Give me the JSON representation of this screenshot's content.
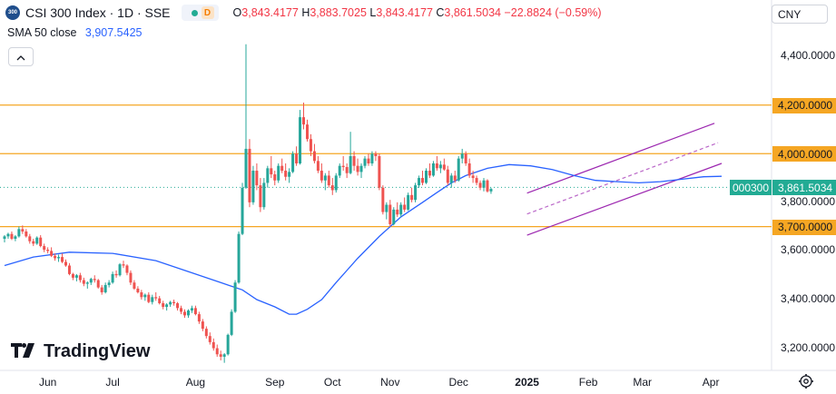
{
  "header": {
    "symbol_logo": "300",
    "title": "CSI 300 Index · 1D · SSE",
    "badge": "D",
    "ohlc": [
      {
        "k": "O",
        "v": "3,843.4177"
      },
      {
        "k": "H",
        "v": "3,883.7025"
      },
      {
        "k": "L",
        "v": "3,843.4177"
      },
      {
        "k": "C",
        "v": "3,861.5034"
      }
    ],
    "change": "−22.8824 (−0.59%)"
  },
  "indicator": {
    "label": "SMA 50 close",
    "value": "3,907.5425"
  },
  "currency": "CNY",
  "price_tag": "3,861.5034",
  "countdown": "000300",
  "brand": "TradingView",
  "colors": {
    "up": "#26a69a",
    "down": "#ef5350",
    "sma": "#2962ff",
    "hlines": "#f5a623",
    "channel": "#9c27b0",
    "tag": "#22ab94"
  },
  "chart_data": {
    "type": "candlestick",
    "y_axis": {
      "min": 3120,
      "max": 4520,
      "ticks": [
        {
          "value": 4400,
          "label": "4,400.0000"
        },
        {
          "value": 4200,
          "label": "4,200.0000",
          "marker": true
        },
        {
          "value": 4000,
          "label": "4,000.0000",
          "marker": true
        },
        {
          "value": 3800,
          "label": "3,800.0000"
        },
        {
          "value": 3700,
          "label": "3,700.0000",
          "marker": true
        },
        {
          "value": 3600,
          "label": "3,600.0000"
        },
        {
          "value": 3400,
          "label": "3,400.0000"
        },
        {
          "value": 3200,
          "label": "3,200.0000"
        }
      ]
    },
    "x_axis": {
      "labels": [
        {
          "label": "Jun",
          "i": 12
        },
        {
          "label": "Jul",
          "i": 30
        },
        {
          "label": "Aug",
          "i": 53
        },
        {
          "label": "Sep",
          "i": 75
        },
        {
          "label": "Oct",
          "i": 91
        },
        {
          "label": "Nov",
          "i": 107
        },
        {
          "label": "Dec",
          "i": 126
        },
        {
          "label": "2025",
          "i": 145,
          "bold": true
        },
        {
          "label": "Feb",
          "i": 162
        },
        {
          "label": "Mar",
          "i": 177
        },
        {
          "label": "Apr",
          "i": 196
        }
      ]
    },
    "horizontal_lines": [
      4200,
      4000,
      3700
    ],
    "channel": {
      "lower": [
        [
          145,
          3665
        ],
        [
          199,
          3960
        ]
      ],
      "upper": [
        [
          145,
          3838
        ],
        [
          197,
          4125
        ]
      ],
      "mid": [
        [
          145,
          3752
        ],
        [
          198,
          4045
        ]
      ]
    },
    "candles": [
      [
        3650,
        3665,
        3635,
        3660
      ],
      [
        3660,
        3675,
        3650,
        3670
      ],
      [
        3670,
        3680,
        3645,
        3650
      ],
      [
        3650,
        3665,
        3640,
        3660
      ],
      [
        3660,
        3700,
        3655,
        3690
      ],
      [
        3690,
        3705,
        3670,
        3680
      ],
      [
        3680,
        3690,
        3655,
        3660
      ],
      [
        3660,
        3670,
        3630,
        3640
      ],
      [
        3640,
        3650,
        3620,
        3630
      ],
      [
        3630,
        3660,
        3625,
        3655
      ],
      [
        3655,
        3665,
        3615,
        3620
      ],
      [
        3620,
        3630,
        3595,
        3605
      ],
      [
        3605,
        3615,
        3590,
        3600
      ],
      [
        3600,
        3615,
        3575,
        3580
      ],
      [
        3580,
        3590,
        3560,
        3570
      ],
      [
        3570,
        3585,
        3555,
        3575
      ],
      [
        3575,
        3590,
        3550,
        3555
      ],
      [
        3555,
        3565,
        3535,
        3540
      ],
      [
        3540,
        3550,
        3500,
        3505
      ],
      [
        3505,
        3510,
        3480,
        3490
      ],
      [
        3490,
        3505,
        3475,
        3500
      ],
      [
        3500,
        3510,
        3470,
        3480
      ],
      [
        3480,
        3490,
        3455,
        3465
      ],
      [
        3465,
        3475,
        3445,
        3470
      ],
      [
        3470,
        3490,
        3460,
        3485
      ],
      [
        3485,
        3500,
        3470,
        3480
      ],
      [
        3480,
        3485,
        3445,
        3450
      ],
      [
        3450,
        3460,
        3420,
        3430
      ],
      [
        3430,
        3470,
        3425,
        3460
      ],
      [
        3460,
        3480,
        3450,
        3470
      ],
      [
        3470,
        3515,
        3465,
        3505
      ],
      [
        3505,
        3520,
        3490,
        3500
      ],
      [
        3500,
        3550,
        3495,
        3545
      ],
      [
        3545,
        3560,
        3530,
        3540
      ],
      [
        3540,
        3545,
        3500,
        3510
      ],
      [
        3510,
        3520,
        3460,
        3470
      ],
      [
        3470,
        3480,
        3440,
        3445
      ],
      [
        3445,
        3455,
        3425,
        3430
      ],
      [
        3430,
        3440,
        3400,
        3410
      ],
      [
        3410,
        3425,
        3395,
        3420
      ],
      [
        3420,
        3430,
        3385,
        3390
      ],
      [
        3390,
        3420,
        3380,
        3410
      ],
      [
        3410,
        3430,
        3395,
        3405
      ],
      [
        3405,
        3415,
        3380,
        3385
      ],
      [
        3385,
        3395,
        3360,
        3370
      ],
      [
        3370,
        3385,
        3355,
        3380
      ],
      [
        3380,
        3395,
        3370,
        3390
      ],
      [
        3390,
        3400,
        3375,
        3385
      ],
      [
        3385,
        3390,
        3355,
        3365
      ],
      [
        3365,
        3375,
        3340,
        3350
      ],
      [
        3350,
        3360,
        3325,
        3335
      ],
      [
        3335,
        3360,
        3325,
        3355
      ],
      [
        3355,
        3375,
        3345,
        3365
      ],
      [
        3365,
        3375,
        3335,
        3340
      ],
      [
        3340,
        3350,
        3300,
        3310
      ],
      [
        3310,
        3320,
        3270,
        3280
      ],
      [
        3280,
        3290,
        3240,
        3250
      ],
      [
        3250,
        3265,
        3215,
        3225
      ],
      [
        3225,
        3240,
        3190,
        3200
      ],
      [
        3200,
        3215,
        3165,
        3175
      ],
      [
        3175,
        3190,
        3150,
        3165
      ],
      [
        3165,
        3180,
        3140,
        3175
      ],
      [
        3175,
        3260,
        3170,
        3255
      ],
      [
        3255,
        3360,
        3250,
        3350
      ],
      [
        3350,
        3480,
        3345,
        3470
      ],
      [
        3470,
        3680,
        3465,
        3670
      ],
      [
        3670,
        3880,
        3665,
        3860
      ],
      [
        3860,
        4450,
        3855,
        4020
      ],
      [
        4020,
        4060,
        3780,
        3800
      ],
      [
        3800,
        3950,
        3790,
        3930
      ],
      [
        3930,
        3960,
        3850,
        3870
      ],
      [
        3870,
        3900,
        3760,
        3780
      ],
      [
        3780,
        3900,
        3770,
        3880
      ],
      [
        3880,
        3950,
        3860,
        3940
      ],
      [
        3940,
        3990,
        3900,
        3915
      ],
      [
        3915,
        3930,
        3870,
        3890
      ],
      [
        3890,
        3960,
        3880,
        3950
      ],
      [
        3950,
        3980,
        3920,
        3930
      ],
      [
        3930,
        3960,
        3890,
        3905
      ],
      [
        3905,
        3940,
        3880,
        3925
      ],
      [
        3925,
        4010,
        3920,
        4000
      ],
      [
        4000,
        4030,
        3950,
        3960
      ],
      [
        3960,
        4180,
        3955,
        4150
      ],
      [
        4150,
        4210,
        4100,
        4120
      ],
      [
        4120,
        4140,
        4050,
        4060
      ],
      [
        4060,
        4080,
        3990,
        4010
      ],
      [
        4010,
        4040,
        3960,
        3970
      ],
      [
        3970,
        3990,
        3920,
        3930
      ],
      [
        3930,
        3960,
        3880,
        3890
      ],
      [
        3890,
        3920,
        3850,
        3910
      ],
      [
        3910,
        3930,
        3860,
        3870
      ],
      [
        3870,
        3900,
        3830,
        3850
      ],
      [
        3850,
        3920,
        3840,
        3910
      ],
      [
        3910,
        3960,
        3900,
        3950
      ],
      [
        3950,
        3990,
        3930,
        3945
      ],
      [
        3945,
        3960,
        3900,
        3920
      ],
      [
        3920,
        4090,
        3915,
        3990
      ],
      [
        3990,
        4010,
        3930,
        3950
      ],
      [
        3950,
        3980,
        3910,
        3925
      ],
      [
        3925,
        3960,
        3900,
        3950
      ],
      [
        3950,
        3990,
        3940,
        3980
      ],
      [
        3980,
        4000,
        3950,
        3960
      ],
      [
        3960,
        4010,
        3950,
        4000
      ],
      [
        4000,
        4010,
        3970,
        3990
      ],
      [
        3990,
        4000,
        3850,
        3860
      ],
      [
        3860,
        3870,
        3750,
        3760
      ],
      [
        3760,
        3800,
        3730,
        3790
      ],
      [
        3790,
        3810,
        3700,
        3710
      ],
      [
        3710,
        3780,
        3705,
        3770
      ],
      [
        3770,
        3800,
        3740,
        3750
      ],
      [
        3750,
        3800,
        3740,
        3790
      ],
      [
        3790,
        3820,
        3760,
        3770
      ],
      [
        3770,
        3840,
        3765,
        3830
      ],
      [
        3830,
        3860,
        3800,
        3810
      ],
      [
        3810,
        3880,
        3800,
        3870
      ],
      [
        3870,
        3910,
        3860,
        3900
      ],
      [
        3900,
        3930,
        3870,
        3880
      ],
      [
        3880,
        3940,
        3875,
        3930
      ],
      [
        3930,
        3960,
        3900,
        3910
      ],
      [
        3910,
        3970,
        3905,
        3960
      ],
      [
        3960,
        3990,
        3930,
        3940
      ],
      [
        3940,
        3970,
        3920,
        3955
      ],
      [
        3955,
        3980,
        3930,
        3935
      ],
      [
        3935,
        3950,
        3870,
        3880
      ],
      [
        3880,
        3920,
        3860,
        3910
      ],
      [
        3910,
        3930,
        3880,
        3890
      ],
      [
        3890,
        3990,
        3885,
        3980
      ],
      [
        3980,
        4020,
        3960,
        4000
      ],
      [
        4000,
        4010,
        3950,
        3960
      ],
      [
        3960,
        3980,
        3900,
        3910
      ],
      [
        3910,
        3930,
        3880,
        3900
      ],
      [
        3900,
        3910,
        3870,
        3880
      ],
      [
        3880,
        3890,
        3850,
        3860
      ],
      [
        3860,
        3900,
        3845,
        3890
      ],
      [
        3890,
        3895,
        3840,
        3845
      ],
      [
        3845,
        3860,
        3835,
        3855
      ]
    ],
    "sma50": [
      [
        0,
        3540
      ],
      [
        8,
        3575
      ],
      [
        18,
        3595
      ],
      [
        30,
        3590
      ],
      [
        42,
        3560
      ],
      [
        52,
        3510
      ],
      [
        60,
        3470
      ],
      [
        66,
        3440
      ],
      [
        70,
        3400
      ],
      [
        75,
        3370
      ],
      [
        79,
        3340
      ],
      [
        81,
        3340
      ],
      [
        84,
        3360
      ],
      [
        88,
        3400
      ],
      [
        92,
        3470
      ],
      [
        98,
        3570
      ],
      [
        104,
        3660
      ],
      [
        110,
        3740
      ],
      [
        116,
        3800
      ],
      [
        120,
        3840
      ],
      [
        124,
        3880
      ],
      [
        128,
        3910
      ],
      [
        134,
        3940
      ],
      [
        140,
        3955
      ],
      [
        146,
        3950
      ],
      [
        152,
        3935
      ],
      [
        158,
        3910
      ],
      [
        164,
        3890
      ],
      [
        170,
        3885
      ],
      [
        176,
        3880
      ],
      [
        182,
        3885
      ],
      [
        188,
        3895
      ],
      [
        194,
        3905
      ],
      [
        199,
        3907
      ]
    ],
    "last_price": 3861.5034
  }
}
